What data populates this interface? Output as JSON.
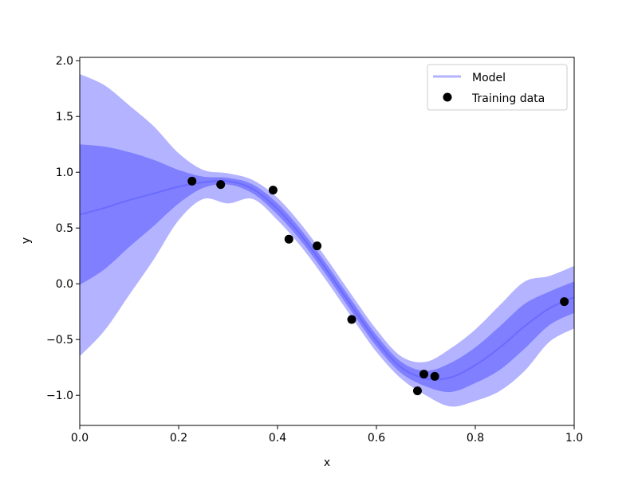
{
  "chart_data": {
    "type": "line",
    "title": "",
    "xlabel": "x",
    "ylabel": "y",
    "xlim": [
      0.0,
      1.0
    ],
    "ylim": [
      -1.27,
      2.03
    ],
    "xticks": [
      "0.0",
      "0.2",
      "0.4",
      "0.6",
      "0.8",
      "1.0"
    ],
    "yticks": [
      "−1.0",
      "−0.5",
      "0.0",
      "0.5",
      "1.0",
      "1.5",
      "2.0"
    ],
    "legend_position": "upper-right",
    "grid": false,
    "colors": {
      "mean": "#6b6bff",
      "band_inner": "#7f7fff",
      "band_outer": "#b3b3ff",
      "points": "#000000"
    },
    "series": [
      {
        "name": "Model",
        "kind": "mean-with-confidence-bands",
        "x": [
          0.0,
          0.05,
          0.1,
          0.15,
          0.2,
          0.25,
          0.3,
          0.35,
          0.4,
          0.45,
          0.5,
          0.55,
          0.6,
          0.65,
          0.7,
          0.75,
          0.8,
          0.85,
          0.9,
          0.95,
          1.0
        ],
        "mean": [
          0.62,
          0.68,
          0.75,
          0.81,
          0.87,
          0.91,
          0.92,
          0.85,
          0.67,
          0.42,
          0.12,
          -0.2,
          -0.51,
          -0.75,
          -0.85,
          -0.84,
          -0.73,
          -0.57,
          -0.38,
          -0.22,
          -0.12
        ],
        "inner_upper": [
          1.25,
          1.23,
          1.18,
          1.11,
          1.02,
          0.96,
          0.95,
          0.89,
          0.72,
          0.47,
          0.17,
          -0.15,
          -0.46,
          -0.7,
          -0.78,
          -0.71,
          -0.57,
          -0.38,
          -0.18,
          -0.07,
          0.02
        ],
        "inner_lower": [
          -0.01,
          0.13,
          0.33,
          0.52,
          0.72,
          0.86,
          0.89,
          0.81,
          0.62,
          0.37,
          0.07,
          -0.25,
          -0.56,
          -0.8,
          -0.92,
          -0.97,
          -0.89,
          -0.77,
          -0.58,
          -0.37,
          -0.26
        ],
        "outer_upper": [
          1.88,
          1.78,
          1.6,
          1.41,
          1.17,
          1.02,
          0.99,
          0.93,
          0.77,
          0.52,
          0.22,
          -0.1,
          -0.41,
          -0.65,
          -0.7,
          -0.58,
          -0.41,
          -0.19,
          0.02,
          0.07,
          0.16
        ],
        "outer_lower": [
          -0.65,
          -0.42,
          -0.1,
          0.22,
          0.57,
          0.76,
          0.72,
          0.76,
          0.57,
          0.32,
          0.02,
          -0.3,
          -0.61,
          -0.85,
          -1.0,
          -1.1,
          -1.05,
          -0.96,
          -0.78,
          -0.52,
          -0.4
        ]
      },
      {
        "name": "Training data",
        "kind": "scatter",
        "points": [
          {
            "x": 0.227,
            "y": 0.92
          },
          {
            "x": 0.285,
            "y": 0.89
          },
          {
            "x": 0.391,
            "y": 0.84
          },
          {
            "x": 0.423,
            "y": 0.4
          },
          {
            "x": 0.48,
            "y": 0.34
          },
          {
            "x": 0.55,
            "y": -0.32
          },
          {
            "x": 0.683,
            "y": -0.96
          },
          {
            "x": 0.696,
            "y": -0.81
          },
          {
            "x": 0.718,
            "y": -0.83
          },
          {
            "x": 0.98,
            "y": -0.16
          }
        ]
      }
    ]
  }
}
